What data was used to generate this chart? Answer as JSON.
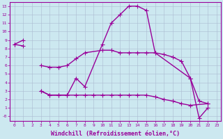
{
  "xlabel": "Windchill (Refroidissement éolien,°C)",
  "background_color": "#cce8f0",
  "grid_color": "#aabbd0",
  "line_color": "#990099",
  "xlim": [
    -0.5,
    23.5
  ],
  "ylim": [
    -0.5,
    13.5
  ],
  "xticks": [
    0,
    1,
    2,
    3,
    4,
    5,
    6,
    7,
    8,
    9,
    10,
    11,
    12,
    13,
    14,
    15,
    16,
    17,
    18,
    19,
    20,
    21,
    22,
    23
  ],
  "yticks": [
    0,
    1,
    2,
    3,
    4,
    5,
    6,
    7,
    8,
    9,
    10,
    11,
    12,
    13
  ],
  "curve1_x": [
    0,
    1,
    3,
    4,
    5,
    6,
    7,
    8,
    10,
    11,
    12,
    13,
    14,
    15,
    16,
    20,
    21,
    22
  ],
  "curve1_y": [
    8.5,
    9.0,
    3.0,
    2.5,
    2.5,
    2.5,
    4.5,
    3.5,
    8.5,
    11.0,
    12.0,
    13.0,
    13.0,
    12.5,
    7.5,
    4.5,
    -0.2,
    1.0
  ],
  "curve2_x": [
    0,
    1,
    3,
    4,
    5,
    6,
    7,
    8,
    10,
    11,
    12,
    13,
    14,
    15,
    16,
    17,
    18,
    19,
    20,
    21,
    22
  ],
  "curve2_y": [
    8.5,
    8.3,
    6.0,
    5.8,
    5.8,
    6.0,
    6.8,
    7.5,
    7.8,
    7.8,
    7.5,
    7.5,
    7.5,
    7.5,
    7.5,
    7.3,
    7.0,
    6.5,
    4.5,
    1.8,
    1.5
  ],
  "curve3_x": [
    3,
    4,
    5,
    6,
    7,
    8,
    9,
    10,
    11,
    12,
    13,
    14,
    15,
    16,
    17,
    18,
    19,
    20,
    22
  ],
  "curve3_y": [
    3.0,
    2.5,
    2.5,
    2.5,
    2.5,
    2.5,
    2.5,
    2.5,
    2.5,
    2.5,
    2.5,
    2.5,
    2.5,
    2.3,
    2.0,
    1.8,
    1.5,
    1.3,
    1.5
  ],
  "marker": "+",
  "marker_size": 4,
  "linewidth": 1.0
}
